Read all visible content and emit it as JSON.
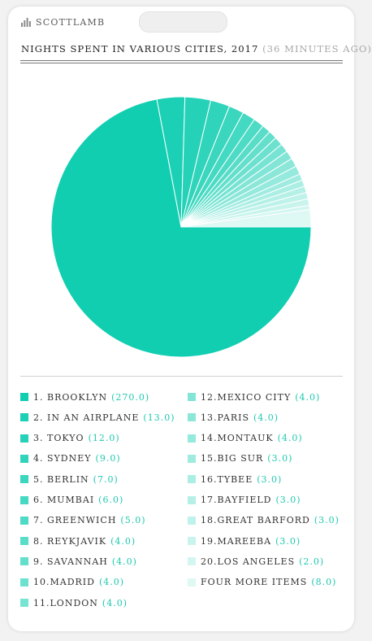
{
  "brand": {
    "name": "SCOTTLAMB",
    "icon": "bar-chart-icon"
  },
  "header": {
    "title": "NIGHTS SPENT IN VARIOUS CITIES, 2017",
    "ago": "(36 MINUTES AGO)"
  },
  "colors": {
    "accent": "#11ceb1",
    "legend_value": "#1ec9b0"
  },
  "chart_data": {
    "type": "pie",
    "title": "NIGHTS SPENT IN VARIOUS CITIES, 2017",
    "unit": "nights",
    "legend_placement": "bottom",
    "slices": [
      {
        "label": "1. BROOKLYN",
        "value": 270.0,
        "display": "(270.0)"
      },
      {
        "label": "2. IN AN AIRPLANE",
        "value": 13.0,
        "display": "(13.0)"
      },
      {
        "label": "3. TOKYO",
        "value": 12.0,
        "display": "(12.0)"
      },
      {
        "label": "4. SYDNEY",
        "value": 9.0,
        "display": "(9.0)"
      },
      {
        "label": "5. BERLIN",
        "value": 7.0,
        "display": "(7.0)"
      },
      {
        "label": "6. MUMBAI",
        "value": 6.0,
        "display": "(6.0)"
      },
      {
        "label": "7. GREENWICH",
        "value": 5.0,
        "display": "(5.0)"
      },
      {
        "label": "8. REYKJAVIK",
        "value": 4.0,
        "display": "(4.0)"
      },
      {
        "label": "9. SAVANNAH",
        "value": 4.0,
        "display": "(4.0)"
      },
      {
        "label": "10.MADRID",
        "value": 4.0,
        "display": "(4.0)"
      },
      {
        "label": "11.LONDON",
        "value": 4.0,
        "display": "(4.0)"
      },
      {
        "label": "12.MEXICO CITY",
        "value": 4.0,
        "display": "(4.0)"
      },
      {
        "label": "13.PARIS",
        "value": 4.0,
        "display": "(4.0)"
      },
      {
        "label": "14.MONTAUK",
        "value": 4.0,
        "display": "(4.0)"
      },
      {
        "label": "15.BIG SUR",
        "value": 3.0,
        "display": "(3.0)"
      },
      {
        "label": "16.TYBEE",
        "value": 3.0,
        "display": "(3.0)"
      },
      {
        "label": "17.BAYFIELD",
        "value": 3.0,
        "display": "(3.0)"
      },
      {
        "label": "18.GREAT BARFORD",
        "value": 3.0,
        "display": "(3.0)"
      },
      {
        "label": "19.MAREEBA",
        "value": 3.0,
        "display": "(3.0)"
      },
      {
        "label": "20.LOS ANGELES",
        "value": 2.0,
        "display": "(2.0)"
      },
      {
        "label": "FOUR MORE ITEMS",
        "value": 8.0,
        "display": "(8.0)"
      }
    ]
  }
}
